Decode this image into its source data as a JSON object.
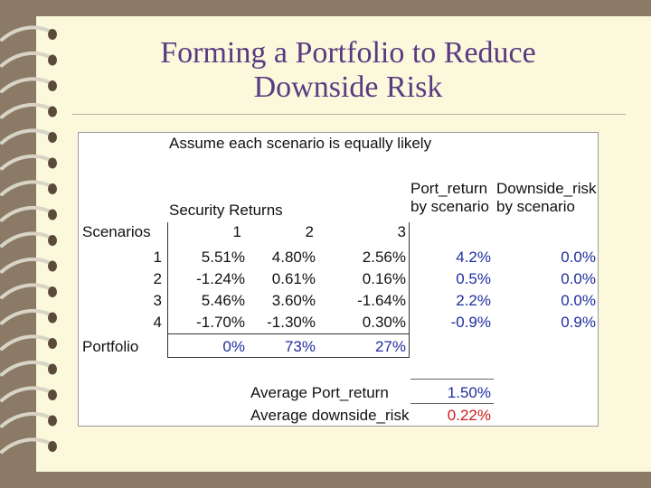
{
  "slide": {
    "title_line1": "Forming a Portfolio to Reduce",
    "title_line2": "Downside Risk"
  },
  "sheet": {
    "note": "Assume each scenario is equally likely",
    "security_returns_label": "Security Returns",
    "scenarios_label": "Scenarios",
    "security_cols": [
      "1",
      "2",
      "3"
    ],
    "port_return_header": [
      "Port_return",
      "by scenario"
    ],
    "downside_header": [
      "Downside_risk",
      "by scenario"
    ],
    "rows": [
      {
        "scenario": "1",
        "s1": "5.51%",
        "s2": "4.80%",
        "s3": "2.56%",
        "port": "4.2%",
        "down": "0.0%"
      },
      {
        "scenario": "2",
        "s1": "-1.24%",
        "s2": "0.61%",
        "s3": "0.16%",
        "port": "0.5%",
        "down": "0.0%"
      },
      {
        "scenario": "3",
        "s1": "5.46%",
        "s2": "3.60%",
        "s3": "-1.64%",
        "port": "2.2%",
        "down": "0.0%"
      },
      {
        "scenario": "4",
        "s1": "-1.70%",
        "s2": "-1.30%",
        "s3": "0.30%",
        "port": "-0.9%",
        "down": "0.9%"
      }
    ],
    "portfolio_label": "Portfolio",
    "weights": [
      "0%",
      "73%",
      "27%"
    ],
    "avg_return_label": "Average Port_return",
    "avg_return_value": "1.50%",
    "avg_downside_label": "Average downside_risk",
    "avg_downside_value": "0.22%"
  },
  "colors": {
    "title": "#5a3a80",
    "highlight_blue": "#1f2ea0",
    "highlight_red": "#cc1b1b",
    "page": "#fbf8dc",
    "border": "#8a7a66"
  }
}
